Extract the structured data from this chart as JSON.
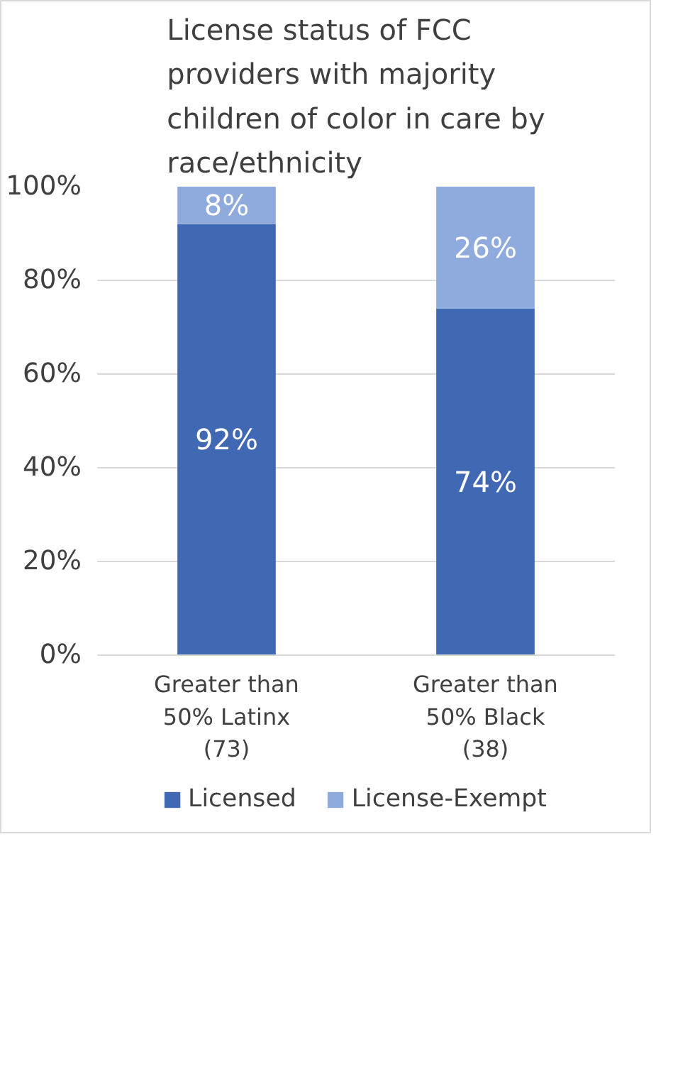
{
  "chart_data": {
    "type": "bar",
    "title": "License status of FCC providers with majority children of color in care by race/ethnicity",
    "categories": [
      "Greater than 50% Latinx (73)",
      "Greater than 50% Black (38)"
    ],
    "stacked": true,
    "series": [
      {
        "name": "Licensed",
        "color": "#4169b3",
        "values": [
          92,
          74
        ]
      },
      {
        "name": "License-Exempt",
        "color": "#8faadc",
        "values": [
          8,
          26
        ]
      }
    ],
    "ylim": [
      0,
      100
    ],
    "yticks": [
      {
        "value": 0,
        "label": "0%"
      },
      {
        "value": 20,
        "label": "20%"
      },
      {
        "value": 40,
        "label": "40%"
      },
      {
        "value": 60,
        "label": "60%"
      },
      {
        "value": 80,
        "label": "80%"
      },
      {
        "value": 100,
        "label": "100%"
      }
    ],
    "value_labels": [
      [
        "92%",
        "74%"
      ],
      [
        "8%",
        "26%"
      ]
    ],
    "grid": "y",
    "legend": "bottom"
  }
}
